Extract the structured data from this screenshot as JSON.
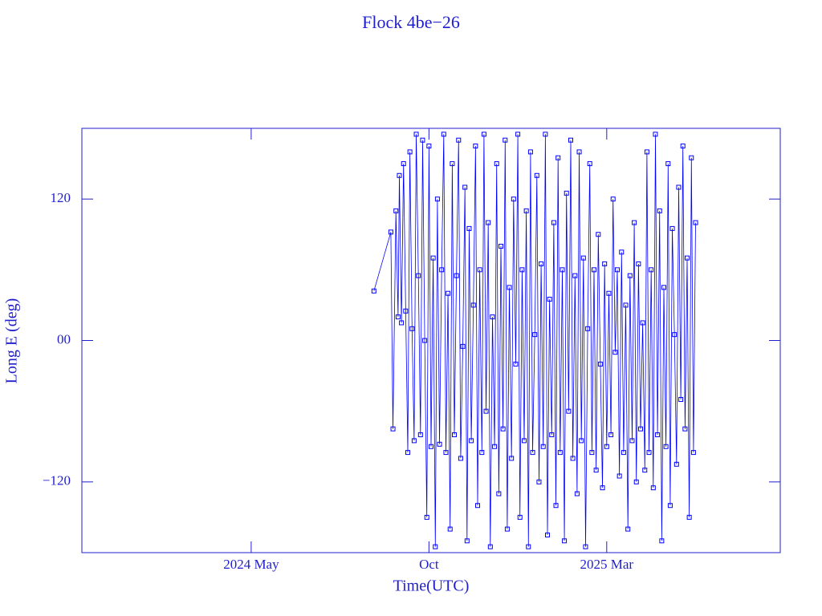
{
  "chart_data": {
    "type": "line",
    "title": "Flock 4be−26",
    "xlabel": "Time(UTC)",
    "ylabel": "Long E (deg)",
    "color": "#0000ff",
    "marker": "square",
    "xlim": [
      2023.93,
      2025.58
    ],
    "xticks": [
      {
        "value": 2024.33,
        "label": "2024 May"
      },
      {
        "value": 2024.75,
        "label": "Oct"
      },
      {
        "value": 2025.17,
        "label": "2025 Mar"
      }
    ],
    "ylim": [
      -180,
      180
    ],
    "yticks": [
      {
        "value": -120,
        "label": "−120"
      },
      {
        "value": 0,
        "label": "00"
      },
      120
    ],
    "x": [
      2024.62,
      2024.66,
      2024.665,
      2024.672,
      2024.677,
      2024.68,
      2024.685,
      2024.69,
      2024.695,
      2024.7,
      2024.705,
      2024.71,
      2024.715,
      2024.72,
      2024.725,
      2024.73,
      2024.735,
      2024.74,
      2024.745,
      2024.75,
      2024.755,
      2024.76,
      2024.765,
      2024.77,
      2024.775,
      2024.78,
      2024.785,
      2024.79,
      2024.795,
      2024.8,
      2024.805,
      2024.81,
      2024.815,
      2024.82,
      2024.825,
      2024.83,
      2024.835,
      2024.84,
      2024.845,
      2024.85,
      2024.855,
      2024.86,
      2024.865,
      2024.87,
      2024.875,
      2024.88,
      2024.885,
      2024.89,
      2024.895,
      2024.9,
      2024.905,
      2024.91,
      2024.915,
      2024.92,
      2024.925,
      2024.93,
      2024.935,
      2024.94,
      2024.945,
      2024.95,
      2024.955,
      2024.96,
      2024.965,
      2024.97,
      2024.975,
      2024.98,
      2024.985,
      2024.99,
      2024.995,
      2025.0,
      2025.005,
      2025.01,
      2025.015,
      2025.02,
      2025.025,
      2025.03,
      2025.035,
      2025.04,
      2025.045,
      2025.05,
      2025.055,
      2025.06,
      2025.065,
      2025.07,
      2025.075,
      2025.08,
      2025.085,
      2025.09,
      2025.095,
      2025.1,
      2025.105,
      2025.11,
      2025.115,
      2025.12,
      2025.125,
      2025.13,
      2025.135,
      2025.14,
      2025.145,
      2025.15,
      2025.155,
      2025.16,
      2025.165,
      2025.17,
      2025.175,
      2025.18,
      2025.185,
      2025.19,
      2025.195,
      2025.2,
      2025.205,
      2025.21,
      2025.215,
      2025.22,
      2025.225,
      2025.23,
      2025.235,
      2025.24,
      2025.245,
      2025.25,
      2025.255,
      2025.26,
      2025.265,
      2025.27,
      2025.275,
      2025.28,
      2025.285,
      2025.29,
      2025.295,
      2025.3,
      2025.305,
      2025.31,
      2025.315,
      2025.32,
      2025.325,
      2025.33,
      2025.335,
      2025.34,
      2025.345,
      2025.35,
      2025.355,
      2025.36,
      2025.365,
      2025.37,
      2025.375,
      2025.38
    ],
    "values": [
      42,
      92,
      -75,
      110,
      20,
      140,
      15,
      150,
      25,
      -95,
      160,
      10,
      -85,
      175,
      55,
      -80,
      170,
      0,
      -150,
      165,
      -90,
      70,
      -175,
      120,
      -88,
      60,
      175,
      -95,
      40,
      -160,
      150,
      -80,
      55,
      170,
      -100,
      -5,
      130,
      -170,
      95,
      -85,
      30,
      165,
      -140,
      60,
      -95,
      175,
      -60,
      100,
      -175,
      20,
      -90,
      150,
      -130,
      80,
      -75,
      170,
      -160,
      45,
      -100,
      120,
      -20,
      175,
      -150,
      60,
      -85,
      110,
      -175,
      160,
      -95,
      5,
      140,
      -120,
      65,
      -90,
      175,
      -165,
      35,
      -80,
      100,
      -140,
      155,
      -95,
      60,
      -170,
      125,
      -60,
      170,
      -100,
      55,
      -130,
      160,
      -85,
      70,
      -175,
      10,
      150,
      -95,
      60,
      -110,
      90,
      -20,
      -125,
      65,
      -90,
      40,
      -80,
      120,
      -10,
      60,
      -115,
      75,
      -95,
      30,
      -160,
      55,
      -85,
      100,
      -120,
      65,
      -75,
      15,
      -110,
      160,
      -95,
      60,
      -125,
      175,
      -80,
      110,
      -170,
      45,
      -90,
      150,
      -140,
      95,
      5,
      -105,
      130,
      -50,
      165,
      -75,
      70,
      -150,
      155,
      -95,
      100
    ]
  }
}
